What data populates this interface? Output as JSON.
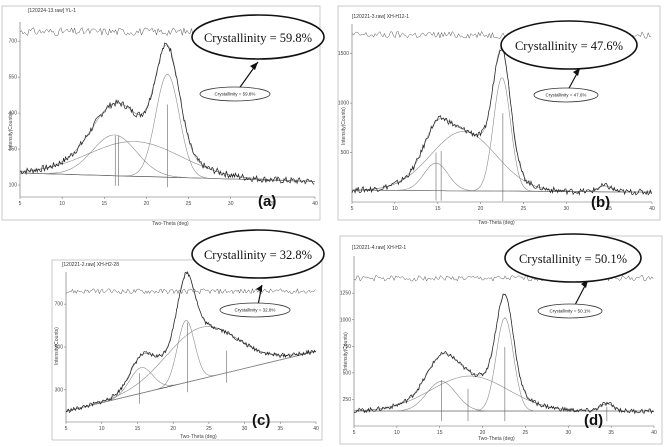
{
  "chart_data": [
    {
      "type": "line",
      "panel_label": "(a)",
      "file_title": "[120224-13.raw] YL-1",
      "ylabel": "Intensity(Counts)",
      "xlabel": "Two-Theta (deg)",
      "x_ticks": [
        "5",
        "10",
        "15",
        "20",
        "25",
        "30",
        "35",
        "40"
      ],
      "y_ticks": [
        "100",
        "250",
        "400",
        "550",
        "700"
      ],
      "xlim": [
        5,
        40
      ],
      "ylim": [
        50,
        780
      ],
      "crystallinity_label": "Crystallinity = 59.8%",
      "crystallinity_small": "Crystallinity = 59.8%",
      "baseline": [
        [
          5,
          150
        ],
        [
          40,
          115
        ]
      ],
      "top_trace_level": 740,
      "peaks": [
        {
          "center": 16.2,
          "height": 170,
          "width": 2.6
        },
        {
          "center": 18.6,
          "height": 145,
          "width": 5.5
        },
        {
          "center": 22.5,
          "height": 430,
          "width": 1.4
        }
      ],
      "vertical_lines": [
        16.3,
        16.7,
        22.5
      ],
      "noise": 14
    },
    {
      "type": "line",
      "panel_label": "(b)",
      "file_title": "[120221-3.raw] XH-H12-1",
      "ylabel": "Intensity(Counts)",
      "xlabel": "Two-Theta (deg)",
      "x_ticks": [
        "5",
        "10",
        "15",
        "20",
        "25",
        "30",
        "35",
        "40"
      ],
      "y_ticks": [
        "500",
        "1000",
        "1500"
      ],
      "xlim": [
        5,
        40
      ],
      "ylim": [
        0,
        1800
      ],
      "crystallinity_label": "Crystallinity = 47.6%",
      "crystallinity_small": "Crystallinity = 47.6%",
      "baseline": [
        [
          5,
          120
        ],
        [
          40,
          100
        ]
      ],
      "top_trace_level": 1690,
      "peaks": [
        {
          "center": 14.8,
          "height": 280,
          "width": 1.4
        },
        {
          "center": 18.0,
          "height": 600,
          "width": 3.8
        },
        {
          "center": 22.5,
          "height": 1150,
          "width": 1.0
        },
        {
          "center": 34.5,
          "height": 60,
          "width": 0.8
        }
      ],
      "vertical_lines": [
        14.8,
        15.4,
        22.6
      ],
      "noise": 30
    },
    {
      "type": "line",
      "panel_label": "(c)",
      "file_title": "[120221-2.raw] XH-H2-28",
      "ylabel": "Intensity(Counts)",
      "xlabel": "Two-Theta (deg)",
      "x_ticks": [
        "5",
        "10",
        "15",
        "20",
        "25",
        "30",
        "35",
        "40"
      ],
      "y_ticks": [
        "300",
        "500",
        "700"
      ],
      "xlim": [
        5,
        40
      ],
      "ylim": [
        150,
        850
      ],
      "crystallinity_label": "Crystallinity = 32.8%",
      "crystallinity_small": "Crystallinity = 32.8%",
      "baseline": [
        [
          5,
          200
        ],
        [
          40,
          480
        ]
      ],
      "top_trace_level": 760,
      "peaks": [
        {
          "center": 15.5,
          "height": 120,
          "width": 1.6
        },
        {
          "center": 24.0,
          "height": 240,
          "width": 5.0
        },
        {
          "center": 21.8,
          "height": 290,
          "width": 1.2
        }
      ],
      "vertical_lines": [
        15.3,
        22.0,
        27.5
      ],
      "noise": 10
    },
    {
      "type": "line",
      "panel_label": "(d)",
      "file_title": "[120221-4.raw] XH-H2-1",
      "ylabel": "Intensity(Counts)",
      "xlabel": "Two-Theta (deg)",
      "x_ticks": [
        "5",
        "10",
        "15",
        "20",
        "25",
        "30",
        "35",
        "40"
      ],
      "y_ticks": [
        "250",
        "500",
        "750",
        "1000",
        "1250"
      ],
      "xlim": [
        5,
        40
      ],
      "ylim": [
        0,
        1600
      ],
      "crystallinity_label": "Crystallinity = 50.1%",
      "crystallinity_small": "Crystallinity = 50.1%",
      "baseline": [
        [
          5,
          140
        ],
        [
          40,
          140
        ]
      ],
      "top_trace_level": 1390,
      "peaks": [
        {
          "center": 15.2,
          "height": 280,
          "width": 1.7
        },
        {
          "center": 18.5,
          "height": 330,
          "width": 4.5
        },
        {
          "center": 22.6,
          "height": 880,
          "width": 1.0
        },
        {
          "center": 34.5,
          "height": 70,
          "width": 0.8
        }
      ],
      "vertical_lines": [
        15.2,
        18.3,
        22.6,
        34.5
      ],
      "noise": 22
    }
  ]
}
